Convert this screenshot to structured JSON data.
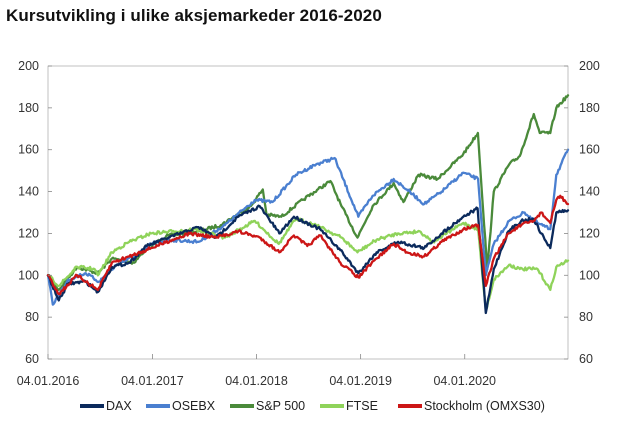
{
  "title": "Kursutvikling i ulike aksjemarkeder 2016-2020",
  "chart_data": {
    "type": "line",
    "title": "Kursutvikling i ulike aksjemarkeder 2016-2020",
    "xlabel": "",
    "ylabel": "",
    "ylim": [
      60,
      200
    ],
    "yticks": [
      60,
      80,
      100,
      120,
      140,
      160,
      180,
      200
    ],
    "secondary_y_axis": true,
    "xlim": [
      "2016-01-04",
      "2020-12-31"
    ],
    "xticks": [
      "04.01.2016",
      "04.01.2017",
      "04.01.2018",
      "04.01.2019",
      "04.01.2020"
    ],
    "grid": false,
    "legend_position": "bottom",
    "series": [
      {
        "name": "DAX",
        "color": "#0b2a5c",
        "x": [
          "2016-01-04",
          "2016-02-11",
          "2016-03-15",
          "2016-05-15",
          "2016-06-27",
          "2016-08-15",
          "2016-10-15",
          "2016-12-15",
          "2017-03-01",
          "2017-06-15",
          "2017-08-15",
          "2017-11-01",
          "2018-01-15",
          "2018-03-25",
          "2018-05-15",
          "2018-08-15",
          "2018-10-25",
          "2018-12-27",
          "2019-03-01",
          "2019-05-15",
          "2019-08-15",
          "2019-10-15",
          "2019-12-30",
          "2020-02-18",
          "2020-03-18",
          "2020-04-15",
          "2020-06-05",
          "2020-07-20",
          "2020-09-01",
          "2020-09-28",
          "2020-10-30",
          "2020-11-20",
          "2020-12-31"
        ],
        "values": [
          100,
          88,
          96,
          97,
          92,
          104,
          106,
          114,
          118,
          123,
          118,
          128,
          133,
          120,
          128,
          122,
          112,
          101,
          111,
          116,
          113,
          120,
          128,
          132,
          82,
          103,
          121,
          126,
          127,
          120,
          113,
          130,
          131
        ]
      },
      {
        "name": "OSEBX",
        "color": "#4a7fd0",
        "x": [
          "2016-01-04",
          "2016-01-21",
          "2016-03-15",
          "2016-05-15",
          "2016-07-01",
          "2016-09-01",
          "2016-11-15",
          "2016-12-30",
          "2017-03-01",
          "2017-06-15",
          "2017-09-15",
          "2017-12-29",
          "2018-03-01",
          "2018-05-22",
          "2018-08-01",
          "2018-10-05",
          "2018-12-27",
          "2019-02-15",
          "2019-04-30",
          "2019-06-15",
          "2019-08-15",
          "2019-10-15",
          "2019-12-30",
          "2020-02-20",
          "2020-03-18",
          "2020-04-15",
          "2020-06-08",
          "2020-08-01",
          "2020-09-15",
          "2020-10-30",
          "2020-11-20",
          "2020-12-31"
        ],
        "values": [
          100,
          86,
          98,
          101,
          97,
          105,
          110,
          115,
          117,
          116,
          124,
          136,
          135,
          148,
          153,
          156,
          128,
          138,
          146,
          141,
          134,
          140,
          149,
          146,
          100,
          115,
          126,
          130,
          125,
          122,
          148,
          160
        ]
      },
      {
        "name": "S&P 500",
        "color": "#4a8a3a",
        "x": [
          "2016-01-04",
          "2016-02-11",
          "2016-04-15",
          "2016-06-27",
          "2016-08-15",
          "2016-11-01",
          "2016-12-15",
          "2017-03-01",
          "2017-06-15",
          "2017-09-01",
          "2017-12-15",
          "2018-01-26",
          "2018-02-08",
          "2018-04-01",
          "2018-06-15",
          "2018-09-20",
          "2018-10-29",
          "2018-12-24",
          "2019-02-15",
          "2019-04-30",
          "2019-06-03",
          "2019-07-26",
          "2019-10-01",
          "2019-12-30",
          "2020-02-19",
          "2020-03-23",
          "2020-04-15",
          "2020-06-08",
          "2020-07-15",
          "2020-09-02",
          "2020-09-23",
          "2020-10-30",
          "2020-11-20",
          "2020-12-31"
        ],
        "values": [
          100,
          93,
          104,
          101,
          108,
          106,
          113,
          119,
          121,
          124,
          133,
          141,
          129,
          128,
          136,
          145,
          133,
          118,
          133,
          144,
          135,
          148,
          146,
          158,
          168,
          103,
          140,
          153,
          157,
          177,
          168,
          168,
          180,
          186
        ]
      },
      {
        "name": "FTSE",
        "color": "#8fd35a",
        "x": [
          "2016-01-04",
          "2016-02-11",
          "2016-04-15",
          "2016-06-15",
          "2016-06-27",
          "2016-08-15",
          "2016-10-15",
          "2016-12-30",
          "2017-03-15",
          "2017-06-01",
          "2017-09-15",
          "2017-12-29",
          "2018-03-23",
          "2018-05-22",
          "2018-08-01",
          "2018-10-29",
          "2018-12-24",
          "2019-03-01",
          "2019-05-15",
          "2019-07-30",
          "2019-09-15",
          "2019-12-30",
          "2020-02-20",
          "2020-03-18",
          "2020-04-15",
          "2020-06-08",
          "2020-07-15",
          "2020-09-15",
          "2020-10-30",
          "2020-11-20",
          "2020-12-31"
        ],
        "values": [
          100,
          95,
          104,
          103,
          100,
          111,
          116,
          120,
          121,
          122,
          118,
          126,
          115,
          127,
          124,
          118,
          111,
          117,
          120,
          121,
          116,
          125,
          122,
          83,
          98,
          105,
          103,
          103,
          93,
          104,
          107
        ]
      },
      {
        "name": "Stockholm (OMXS30)",
        "color": "#cc1616",
        "x": [
          "2016-01-04",
          "2016-02-11",
          "2016-04-15",
          "2016-06-27",
          "2016-08-15",
          "2016-10-15",
          "2016-12-30",
          "2017-03-15",
          "2017-05-15",
          "2017-08-15",
          "2017-11-01",
          "2018-01-15",
          "2018-03-25",
          "2018-05-15",
          "2018-07-01",
          "2018-08-15",
          "2018-10-25",
          "2018-12-27",
          "2019-03-01",
          "2019-04-30",
          "2019-06-15",
          "2019-08-15",
          "2019-10-15",
          "2019-12-30",
          "2020-02-20",
          "2020-03-18",
          "2020-04-15",
          "2020-06-05",
          "2020-07-20",
          "2020-09-01",
          "2020-09-28",
          "2020-10-30",
          "2020-11-20",
          "2020-12-04",
          "2020-12-31"
        ],
        "values": [
          100,
          91,
          100,
          93,
          106,
          109,
          113,
          117,
          120,
          118,
          121,
          118,
          111,
          119,
          114,
          119,
          106,
          99,
          108,
          115,
          111,
          109,
          116,
          122,
          124,
          95,
          108,
          120,
          124,
          126,
          130,
          125,
          136,
          138,
          134
        ]
      }
    ]
  }
}
